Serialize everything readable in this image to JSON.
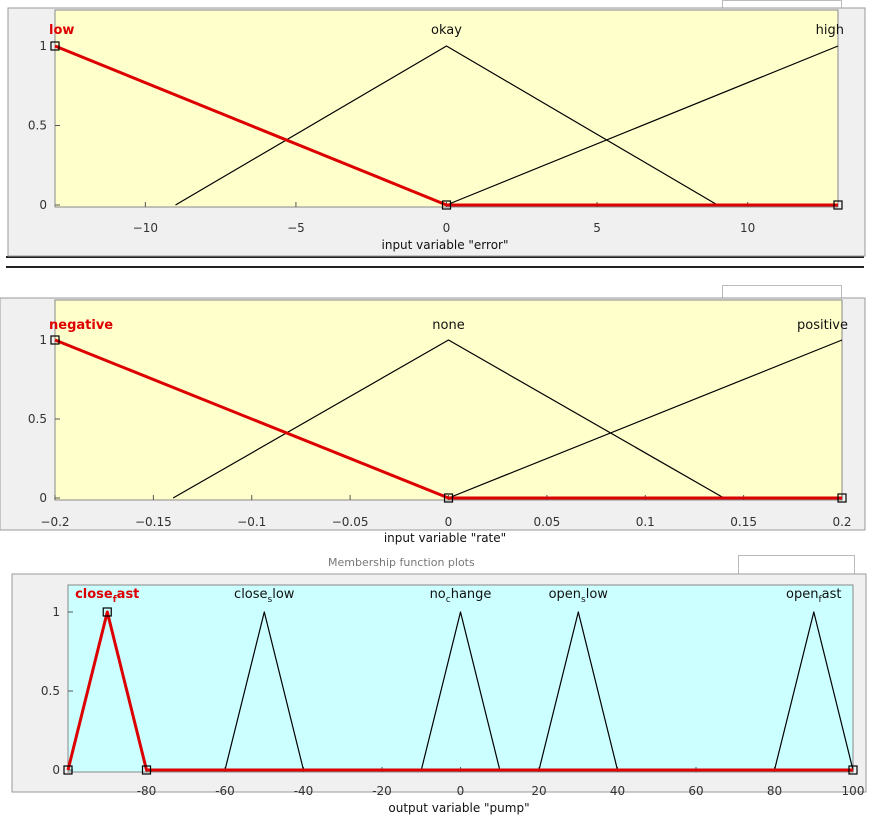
{
  "chart_data": [
    {
      "type": "line",
      "subtype": "membership-functions",
      "plot_background": "#ffffcc",
      "xlabel": "input variable \"error\"",
      "xlim": [
        -13,
        13
      ],
      "ylim": [
        0,
        1
      ],
      "x_ticks": [
        -10,
        -5,
        0,
        5,
        10
      ],
      "x_tick_labels": [
        "−10",
        "−5",
        "0",
        "5",
        "10"
      ],
      "y_ticks": [
        0,
        0.5,
        1
      ],
      "y_tick_labels": [
        "0",
        "0.5",
        "1"
      ],
      "grid": false,
      "series": [
        {
          "name": "low",
          "selected": true,
          "color": "#dd0000",
          "x": [
            -13,
            0,
            13
          ],
          "y": [
            1,
            0,
            0
          ]
        },
        {
          "name": "okay",
          "selected": false,
          "color": "#000000",
          "x": [
            -9,
            0,
            9
          ],
          "y": [
            0,
            1,
            0
          ]
        },
        {
          "name": "high",
          "selected": false,
          "color": "#000000",
          "x": [
            0,
            13
          ],
          "y": [
            0,
            1
          ]
        }
      ]
    },
    {
      "type": "line",
      "subtype": "membership-functions",
      "plot_background": "#ffffcc",
      "xlabel": "input variable \"rate\"",
      "xlim": [
        -0.2,
        0.2
      ],
      "ylim": [
        0,
        1
      ],
      "x_ticks": [
        -0.2,
        -0.15,
        -0.1,
        -0.05,
        0,
        0.05,
        0.1,
        0.15,
        0.2
      ],
      "x_tick_labels": [
        "−0.2",
        "−0.15",
        "−0.1",
        "−0.05",
        "0",
        "0.05",
        "0.1",
        "0.15",
        "0.2"
      ],
      "y_ticks": [
        0,
        0.5,
        1
      ],
      "y_tick_labels": [
        "0",
        "0.5",
        "1"
      ],
      "grid": false,
      "series": [
        {
          "name": "negative",
          "selected": true,
          "color": "#dd0000",
          "x": [
            -0.2,
            0,
            0.2
          ],
          "y": [
            1,
            0,
            0
          ]
        },
        {
          "name": "none",
          "selected": false,
          "color": "#000000",
          "x": [
            -0.14,
            0,
            0.14
          ],
          "y": [
            0,
            1,
            0
          ]
        },
        {
          "name": "positive",
          "selected": false,
          "color": "#000000",
          "x": [
            0,
            0.2
          ],
          "y": [
            0,
            1
          ]
        }
      ]
    },
    {
      "type": "line",
      "subtype": "membership-functions",
      "plot_background": "#ccffff",
      "xlabel": "output variable \"pump\"",
      "xlim": [
        -100,
        100
      ],
      "ylim": [
        0,
        1
      ],
      "x_ticks": [
        -80,
        -60,
        -40,
        -20,
        0,
        20,
        40,
        60,
        80,
        100
      ],
      "x_tick_labels": [
        "-80",
        "-60",
        "-40",
        "-20",
        "0",
        "20",
        "40",
        "60",
        "80",
        "100"
      ],
      "y_ticks": [
        0,
        0.5,
        1
      ],
      "y_tick_labels": [
        "0",
        "0.5",
        "1"
      ],
      "grid": false,
      "series": [
        {
          "name": "close_fast",
          "display_name": "close",
          "subscript": "f",
          "suffix": "ast",
          "selected": true,
          "color": "#dd0000",
          "x": [
            -100,
            -90,
            -80,
            100
          ],
          "y": [
            0,
            1,
            0,
            0
          ]
        },
        {
          "name": "close_slow",
          "display_name": "close",
          "subscript": "s",
          "suffix": "low",
          "selected": false,
          "color": "#000000",
          "x": [
            -60,
            -50,
            -40
          ],
          "y": [
            0,
            1,
            0
          ]
        },
        {
          "name": "no_change",
          "display_name": "no",
          "subscript": "c",
          "suffix": "hange",
          "selected": false,
          "color": "#000000",
          "x": [
            -10,
            0,
            10
          ],
          "y": [
            0,
            1,
            0
          ]
        },
        {
          "name": "open_slow",
          "display_name": "open",
          "subscript": "s",
          "suffix": "low",
          "selected": false,
          "color": "#000000",
          "x": [
            20,
            30,
            40
          ],
          "y": [
            0,
            1,
            0
          ]
        },
        {
          "name": "open_fast",
          "display_name": "open",
          "subscript": "f",
          "suffix": "ast",
          "selected": false,
          "color": "#000000",
          "x": [
            80,
            90,
            100
          ],
          "y": [
            0,
            1,
            0
          ]
        }
      ]
    }
  ],
  "fragments": {
    "bottom_toolbar_text": "Membership function plots"
  }
}
